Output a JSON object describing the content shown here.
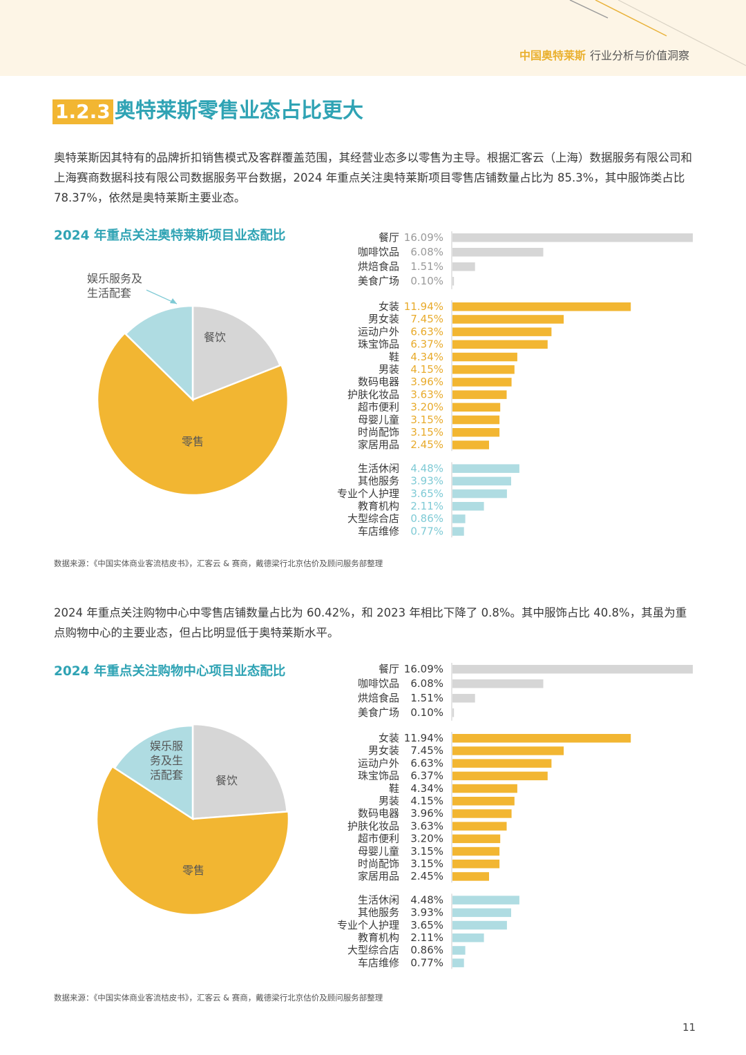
{
  "header": {
    "brand": "中国奥特莱斯",
    "subtitle": "行业分析与价值洞察"
  },
  "section": {
    "number": "1.2.3",
    "title": "奥特莱斯零售业态占比更大"
  },
  "intro_paragraph": "奥特莱斯因其特有的品牌折扣销售模式及客群覆盖范围，其经营业态多以零售为主导。根据汇客云（上海）数据服务有限公司和上海赛商数据科技有限公司数据服务平台数据，2024 年重点关注奥特莱斯项目零售店铺数量占比为 85.3%，其中服饰类占比 78.37%，依然是奥特莱斯主要业态。",
  "second_paragraph": "2024 年重点关注购物中心中零售店铺数量占比为 60.42%，和 2023 年相比下降了 0.8%。其中服饰占比 40.8%，其虽为重点购物中心的主要业态，但占比明显低于奥特莱斯水平。",
  "source_text": "数据来源：《中国实体商业客流桔皮书》，汇客云 & 赛商，戴德梁行北京估价及顾问服务部整理",
  "page_number": "11",
  "colors": {
    "accent_orange": "#f2b632",
    "accent_teal": "#2fa3b4",
    "food_gray": "#d6d6d6",
    "service_blue": "#afdce2"
  },
  "chart_data": [
    {
      "type": "pie",
      "title": "2024 年重点关注奥特莱斯项目业态配比",
      "slices": [
        {
          "label": "餐饮",
          "value": 23.78
        },
        {
          "label": "零售",
          "value": 85.3
        },
        {
          "label": "娱乐服务及生活配套",
          "value": 15.8
        }
      ],
      "callout": "娱乐服务及生活配套"
    },
    {
      "type": "bar",
      "orientation": "horizontal",
      "value_colors": "category",
      "groups": [
        {
          "name": "餐饮",
          "items": [
            {
              "label": "餐厅",
              "value": 16.09,
              "display": "16.09%"
            },
            {
              "label": "咖啡饮品",
              "value": 6.08,
              "display": "6.08%"
            },
            {
              "label": "烘焙食品",
              "value": 1.51,
              "display": "1.51%"
            },
            {
              "label": "美食广场",
              "value": 0.1,
              "display": "0.10%"
            }
          ]
        },
        {
          "name": "零售",
          "items": [
            {
              "label": "女装",
              "value": 11.94,
              "display": "11.94%"
            },
            {
              "label": "男女装",
              "value": 7.45,
              "display": "7.45%"
            },
            {
              "label": "运动户外",
              "value": 6.63,
              "display": "6.63%"
            },
            {
              "label": "珠宝饰品",
              "value": 6.37,
              "display": "6.37%"
            },
            {
              "label": "鞋",
              "value": 4.34,
              "display": "4.34%"
            },
            {
              "label": "男装",
              "value": 4.15,
              "display": "4.15%"
            },
            {
              "label": "数码电器",
              "value": 3.96,
              "display": "3.96%"
            },
            {
              "label": "护肤化妆品",
              "value": 3.63,
              "display": "3.63%"
            },
            {
              "label": "超市便利",
              "value": 3.2,
              "display": "3.20%"
            },
            {
              "label": "母婴儿童",
              "value": 3.15,
              "display": "3.15%"
            },
            {
              "label": "时尚配饰",
              "value": 3.15,
              "display": "3.15%"
            },
            {
              "label": "家居用品",
              "value": 2.45,
              "display": "2.45%"
            }
          ]
        },
        {
          "name": "娱乐服务及生活配套",
          "items": [
            {
              "label": "生活休闲",
              "value": 4.48,
              "display": "4.48%"
            },
            {
              "label": "其他服务",
              "value": 3.93,
              "display": "3.93%"
            },
            {
              "label": "专业个人护理",
              "value": 3.65,
              "display": "3.65%"
            },
            {
              "label": "教育机构",
              "value": 2.11,
              "display": "2.11%"
            },
            {
              "label": "大型综合店",
              "value": 0.86,
              "display": "0.86%"
            },
            {
              "label": "车店维修",
              "value": 0.77,
              "display": "0.77%"
            }
          ]
        }
      ]
    },
    {
      "type": "pie",
      "title": "2024 年重点关注购物中心项目业态配比",
      "slices": [
        {
          "label": "餐饮",
          "value": 23.78
        },
        {
          "label": "零售",
          "value": 60.42
        },
        {
          "label": "娱乐服务及生活配套",
          "value": 15.8
        }
      ],
      "inside_label": "娱乐服务及生活配套"
    },
    {
      "type": "bar",
      "orientation": "horizontal",
      "value_colors": "dark",
      "groups": [
        {
          "name": "餐饮",
          "items": [
            {
              "label": "餐厅",
              "value": 16.09,
              "display": "16.09%"
            },
            {
              "label": "咖啡饮品",
              "value": 6.08,
              "display": "6.08%"
            },
            {
              "label": "烘焙食品",
              "value": 1.51,
              "display": "1.51%"
            },
            {
              "label": "美食广场",
              "value": 0.1,
              "display": "0.10%"
            }
          ]
        },
        {
          "name": "零售",
          "items": [
            {
              "label": "女装",
              "value": 11.94,
              "display": "11.94%"
            },
            {
              "label": "男女装",
              "value": 7.45,
              "display": "7.45%"
            },
            {
              "label": "运动户外",
              "value": 6.63,
              "display": "6.63%"
            },
            {
              "label": "珠宝饰品",
              "value": 6.37,
              "display": "6.37%"
            },
            {
              "label": "鞋",
              "value": 4.34,
              "display": "4.34%"
            },
            {
              "label": "男装",
              "value": 4.15,
              "display": "4.15%"
            },
            {
              "label": "数码电器",
              "value": 3.96,
              "display": "3.96%"
            },
            {
              "label": "护肤化妆品",
              "value": 3.63,
              "display": "3.63%"
            },
            {
              "label": "超市便利",
              "value": 3.2,
              "display": "3.20%"
            },
            {
              "label": "母婴儿童",
              "value": 3.15,
              "display": "3.15%"
            },
            {
              "label": "时尚配饰",
              "value": 3.15,
              "display": "3.15%"
            },
            {
              "label": "家居用品",
              "value": 2.45,
              "display": "2.45%"
            }
          ]
        },
        {
          "name": "娱乐服务及生活配套",
          "items": [
            {
              "label": "生活休闲",
              "value": 4.48,
              "display": "4.48%"
            },
            {
              "label": "其他服务",
              "value": 3.93,
              "display": "3.93%"
            },
            {
              "label": "专业个人护理",
              "value": 3.65,
              "display": "3.65%"
            },
            {
              "label": "教育机构",
              "value": 2.11,
              "display": "2.11%"
            },
            {
              "label": "大型综合店",
              "value": 0.86,
              "display": "0.86%"
            },
            {
              "label": "车店维修",
              "value": 0.77,
              "display": "0.77%"
            }
          ]
        }
      ]
    }
  ]
}
